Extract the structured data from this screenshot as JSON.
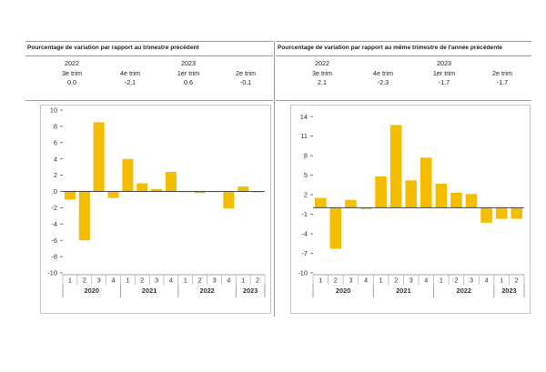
{
  "chart_data": [
    {
      "type": "bar",
      "title": "Pourcentage de variation par rapport au trimestre précédent",
      "summary": [
        {
          "year": "2022",
          "quarter": "3e trim",
          "value": "0.0"
        },
        {
          "year": "",
          "quarter": "4e trim",
          "value": "-2.1"
        },
        {
          "year": "2023",
          "quarter": "1er trim",
          "value": "0.6"
        },
        {
          "year": "",
          "quarter": "2e trim",
          "value": "-0.1"
        }
      ],
      "categories": [
        "1",
        "2",
        "3",
        "4",
        "1",
        "2",
        "3",
        "4",
        "1",
        "2",
        "3",
        "4",
        "1",
        "2"
      ],
      "years": [
        {
          "label": "2020",
          "count": 4
        },
        {
          "label": "2021",
          "count": 4
        },
        {
          "label": "2022",
          "count": 4
        },
        {
          "label": "2023",
          "count": 2
        }
      ],
      "values": [
        -1.0,
        -6.0,
        8.5,
        -0.8,
        4.0,
        1.0,
        0.3,
        2.4,
        0.0,
        -0.2,
        0.0,
        -2.1,
        0.6,
        -0.1
      ],
      "yticks": [
        10,
        8,
        6,
        4,
        2,
        0,
        -2,
        -4,
        -6,
        -8,
        -10
      ],
      "ylim": [
        -10,
        10
      ],
      "bar_color": "#f5bd00",
      "xlabel": "",
      "ylabel": "",
      "grid": false
    },
    {
      "type": "bar",
      "title": "Pourcentage de variation par rapport au même trimestre de l'année précédente",
      "summary": [
        {
          "year": "2022",
          "quarter": "3e trim",
          "value": "2.1"
        },
        {
          "year": "",
          "quarter": "4e trim",
          "value": "-2.3"
        },
        {
          "year": "2023",
          "quarter": "1er trim",
          "value": "-1.7"
        },
        {
          "year": "",
          "quarter": "2e trim",
          "value": "-1.7"
        }
      ],
      "categories": [
        "1",
        "2",
        "3",
        "4",
        "1",
        "2",
        "3",
        "4",
        "1",
        "2",
        "3",
        "4",
        "1",
        "2"
      ],
      "years": [
        {
          "label": "2020",
          "count": 4
        },
        {
          "label": "2021",
          "count": 4
        },
        {
          "label": "2022",
          "count": 4
        },
        {
          "label": "2023",
          "count": 2
        }
      ],
      "values": [
        1.5,
        -6.3,
        1.2,
        -0.2,
        4.8,
        12.7,
        4.2,
        7.7,
        3.7,
        2.3,
        2.1,
        -2.3,
        -1.7,
        -1.7
      ],
      "yticks": [
        14,
        11,
        8,
        5,
        2,
        -1,
        -4,
        -7,
        -10
      ],
      "ylim": [
        -10,
        15
      ],
      "bar_color": "#f5bd00",
      "xlabel": "",
      "ylabel": "",
      "grid": false
    }
  ]
}
